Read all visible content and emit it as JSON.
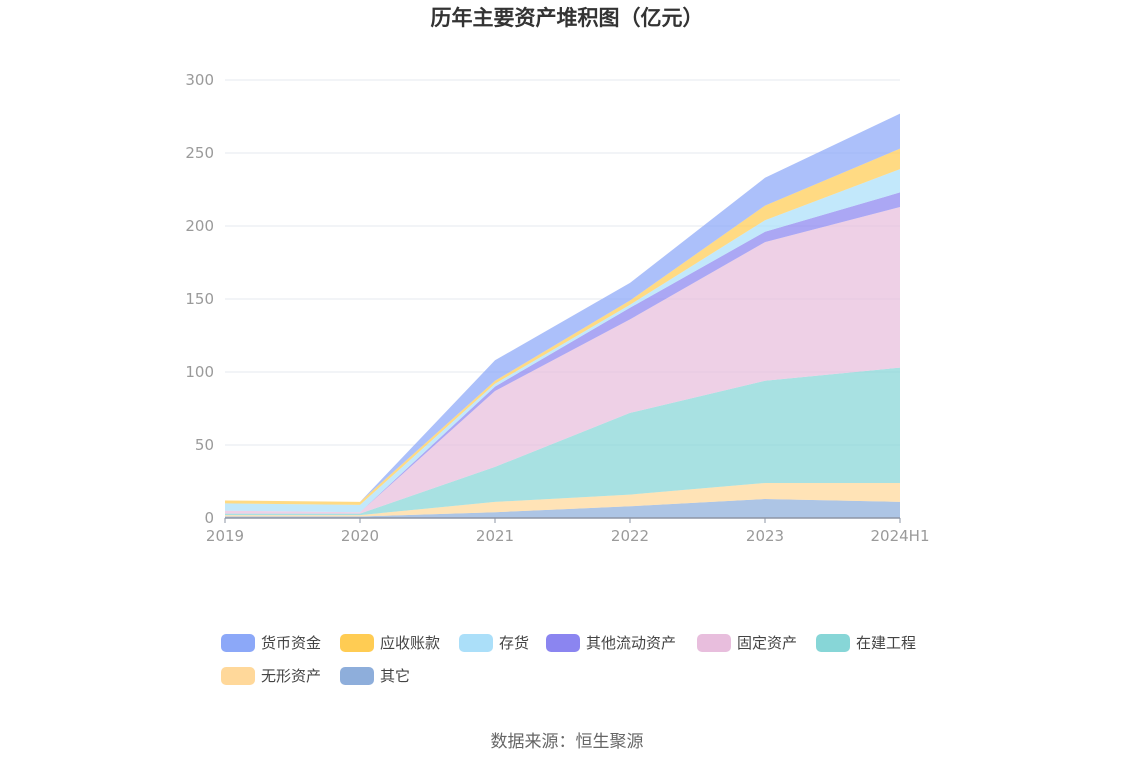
{
  "chart_data": {
    "type": "area",
    "title": "历年主要资产堆积图（亿元）",
    "source": "数据来源：恒生聚源",
    "categories": [
      "2019",
      "2020",
      "2021",
      "2022",
      "2023",
      "2024H1"
    ],
    "ylim": [
      0,
      300
    ],
    "yticks": [
      0,
      50,
      100,
      150,
      200,
      250,
      300
    ],
    "ytick_labels": [
      "0",
      "50",
      "100",
      "150",
      "200",
      "250",
      "300"
    ],
    "grid": true,
    "stacked": true,
    "legend_position": "bottom",
    "series": [
      {
        "name": "其它",
        "color": "#8eaedb",
        "values": [
          1,
          1,
          4,
          8,
          13,
          11
        ]
      },
      {
        "name": "无形资产",
        "color": "#ffd89a",
        "values": [
          1,
          1,
          7,
          8,
          11,
          13
        ]
      },
      {
        "name": "在建工程",
        "color": "#87d6d7",
        "values": [
          1,
          1,
          24,
          56,
          70,
          79
        ]
      },
      {
        "name": "固定资产",
        "color": "#e8bedd",
        "values": [
          2,
          1,
          52,
          64,
          95,
          110
        ]
      },
      {
        "name": "其他流动资产",
        "color": "#8b85f0",
        "values": [
          0,
          0,
          3,
          8,
          7,
          10
        ]
      },
      {
        "name": "存货",
        "color": "#abdff9",
        "values": [
          5,
          5,
          2,
          2,
          8,
          16
        ]
      },
      {
        "name": "应收账款",
        "color": "#ffcc53",
        "values": [
          2,
          2,
          2,
          3,
          10,
          14
        ]
      },
      {
        "name": "货币资金",
        "color": "#8ca8f8",
        "values": [
          0,
          0,
          14,
          12,
          19,
          24
        ]
      }
    ],
    "legend_order": [
      "货币资金",
      "应收账款",
      "存货",
      "其他流动资产",
      "固定资产",
      "在建工程",
      "无形资产",
      "其它"
    ]
  }
}
